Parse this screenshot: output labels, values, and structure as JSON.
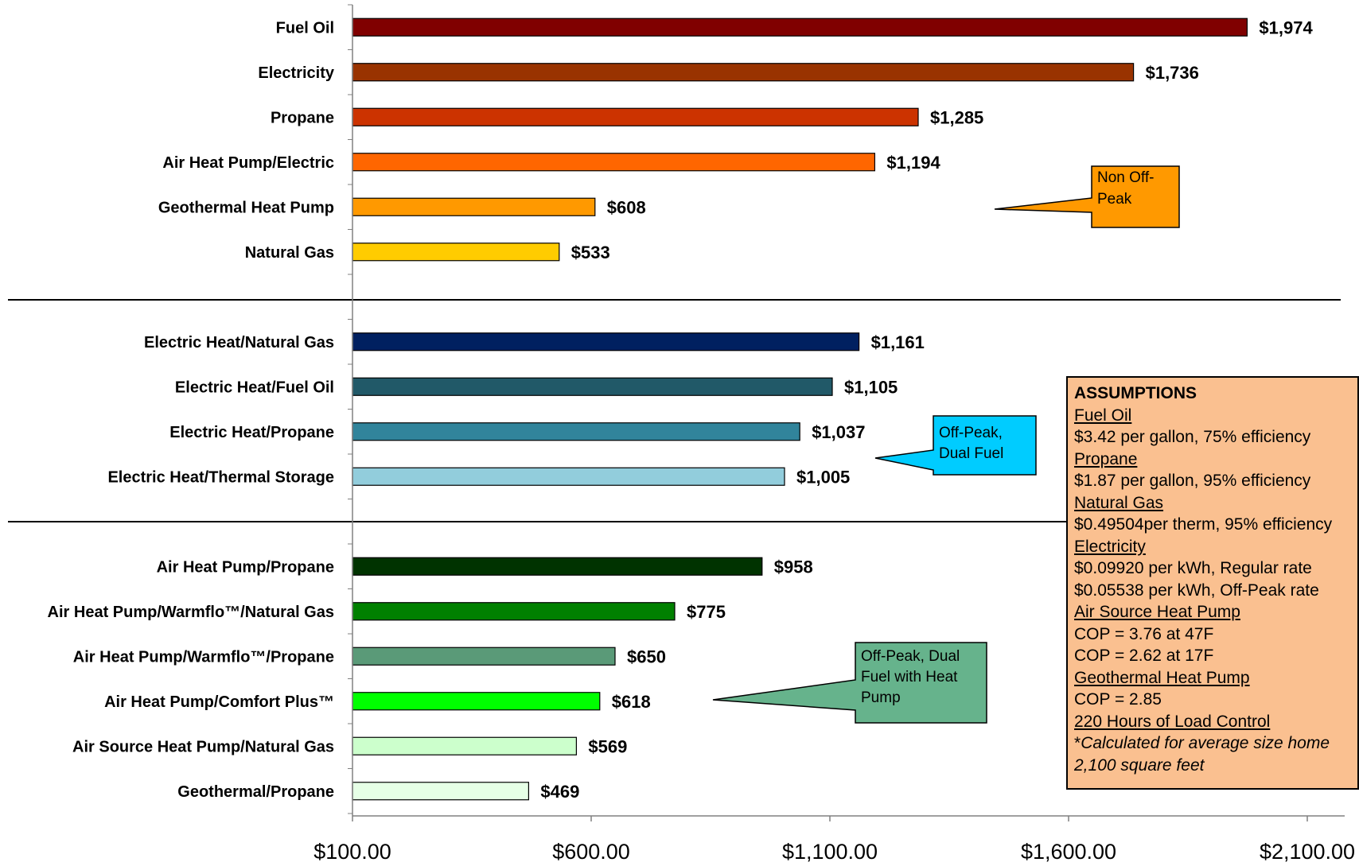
{
  "chart_data": {
    "type": "bar",
    "orientation": "horizontal",
    "title": "",
    "xlabel": "",
    "ylabel": "",
    "xlim": [
      100,
      2200
    ],
    "x_ticks": [
      {
        "value": 100,
        "label": "$100.00"
      },
      {
        "value": 600,
        "label": "$600.00"
      },
      {
        "value": 1100,
        "label": "$1,100.00"
      },
      {
        "value": 1600,
        "label": "$1,600.00"
      },
      {
        "value": 2100,
        "label": "$2,100.00"
      }
    ],
    "groups": [
      {
        "callout": "Non Off-Peak",
        "callout_color": "#ff9900",
        "bars": [
          {
            "category": "Fuel Oil",
            "value": 1974,
            "label": "$1,974",
            "color": "#800000"
          },
          {
            "category": "Electricity",
            "value": 1736,
            "label": "$1,736",
            "color": "#993300"
          },
          {
            "category": "Propane",
            "value": 1285,
            "label": "$1,285",
            "color": "#cc3300"
          },
          {
            "category": "Air Heat Pump/Electric",
            "value": 1194,
            "label": "$1,194",
            "color": "#ff6600"
          },
          {
            "category": "Geothermal Heat Pump",
            "value": 608,
            "label": "$608",
            "color": "#ff9900"
          },
          {
            "category": "Natural Gas",
            "value": 533,
            "label": "$533",
            "color": "#ffcc00"
          }
        ]
      },
      {
        "callout": "Off-Peak, Dual Fuel",
        "callout_color": "#00ccff",
        "bars": [
          {
            "category": "Electric Heat/Natural Gas",
            "value": 1161,
            "label": "$1,161",
            "color": "#002060"
          },
          {
            "category": "Electric Heat/Fuel Oil",
            "value": 1105,
            "label": "$1,105",
            "color": "#215968"
          },
          {
            "category": "Electric Heat/Propane",
            "value": 1037,
            "label": "$1,037",
            "color": "#31849b"
          },
          {
            "category": "Electric Heat/Thermal Storage",
            "value": 1005,
            "label": "$1,005",
            "color": "#92cddc"
          }
        ]
      },
      {
        "callout": "Off-Peak, Dual Fuel with Heat Pump",
        "callout_color": "#66b38c",
        "bars": [
          {
            "category": "Air Heat Pump/Propane",
            "value": 958,
            "label": "$958",
            "color": "#003300"
          },
          {
            "category": "Air Heat Pump/Warmflo™/Natural Gas",
            "value": 775,
            "label": "$775",
            "color": "#008000"
          },
          {
            "category": "Air Heat Pump/Warmflo™/Propane",
            "value": 650,
            "label": "$650",
            "color": "#5a9a78"
          },
          {
            "category": "Air Heat Pump/Comfort Plus™",
            "value": 618,
            "label": "$618",
            "color": "#00ff00"
          },
          {
            "category": "Air Source Heat Pump/Natural Gas",
            "value": 569,
            "label": "$569",
            "color": "#ccffcc"
          },
          {
            "category": "Geothermal/Propane",
            "value": 469,
            "label": "$469",
            "color": "#e6ffe6"
          }
        ]
      }
    ],
    "grid": false,
    "legend": "none"
  },
  "callouts": {
    "non_offpeak": [
      "Non Off-",
      "Peak"
    ],
    "offpeak_dual": [
      "Off-Peak,",
      "Dual Fuel"
    ],
    "offpeak_hp": [
      "Off-Peak, Dual",
      "Fuel with Heat",
      "Pump"
    ]
  },
  "assumptions": {
    "heading": "ASSUMPTIONS",
    "fuel_oil_head": "Fuel Oil",
    "fuel_oil": "$3.42 per gallon, 75% efficiency",
    "propane_head": "Propane",
    "propane": "$1.87 per gallon, 95% efficiency",
    "natural_gas_head": "Natural Gas",
    "natural_gas": "$0.49504per therm, 95% efficiency",
    "electricity_head": "Electricity",
    "electricity_regular": "$0.09920 per kWh, Regular rate",
    "electricity_offpeak": "$0.05538 per kWh, Off-Peak rate",
    "ashp_head": "Air Source Heat Pump",
    "ashp_cop1": "COP = 3.76 at 47F",
    "ashp_cop2": "COP = 2.62 at 17F",
    "geo_head": "Geothermal Heat Pump",
    "geo_cop": "COP = 2.85",
    "load_control": "220 Hours of Load Control",
    "asterisk": "*",
    "note_line1": "Calculated for average size home",
    "note_line2": "2,100 square feet"
  }
}
